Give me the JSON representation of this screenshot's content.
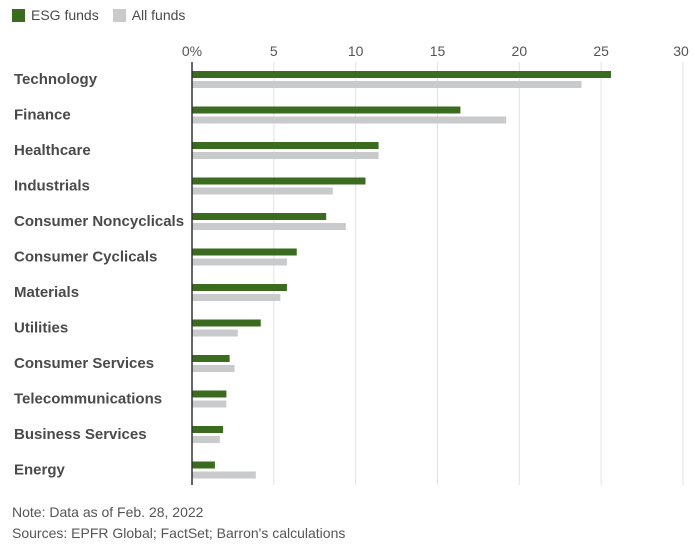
{
  "legend": {
    "esg_label": "ESG funds",
    "all_label": "All funds"
  },
  "colors": {
    "esg": "#3a6b1e",
    "all": "#c8cacc",
    "grid": "#e2e2e2",
    "axis": "#333333"
  },
  "chart_data": {
    "type": "bar",
    "orientation": "horizontal",
    "title": "",
    "xlabel": "",
    "ylabel": "",
    "xlim": [
      0,
      30
    ],
    "x_ticks": [
      0,
      5,
      10,
      15,
      20,
      25,
      30
    ],
    "x_tick_labels": [
      "0%",
      "5",
      "10",
      "15",
      "20",
      "25",
      "30"
    ],
    "grid": true,
    "legend_position": "top-left",
    "categories": [
      "Technology",
      "Finance",
      "Healthcare",
      "Industrials",
      "Consumer Noncyclicals",
      "Consumer Cyclicals",
      "Materials",
      "Utilities",
      "Consumer Services",
      "Telecommunications",
      "Business Services",
      "Energy"
    ],
    "series": [
      {
        "name": "ESG funds",
        "values": [
          25.6,
          16.4,
          11.4,
          10.6,
          8.2,
          6.4,
          5.8,
          4.2,
          2.3,
          2.1,
          1.9,
          1.4
        ]
      },
      {
        "name": "All funds",
        "values": [
          23.8,
          19.2,
          11.4,
          8.6,
          9.4,
          5.8,
          5.4,
          2.8,
          2.6,
          2.1,
          1.7,
          3.9
        ]
      }
    ]
  },
  "notes": {
    "note": "Note: Data as of Feb. 28, 2022",
    "sources": "Sources: EPFR Global; FactSet; Barron's calculations"
  }
}
